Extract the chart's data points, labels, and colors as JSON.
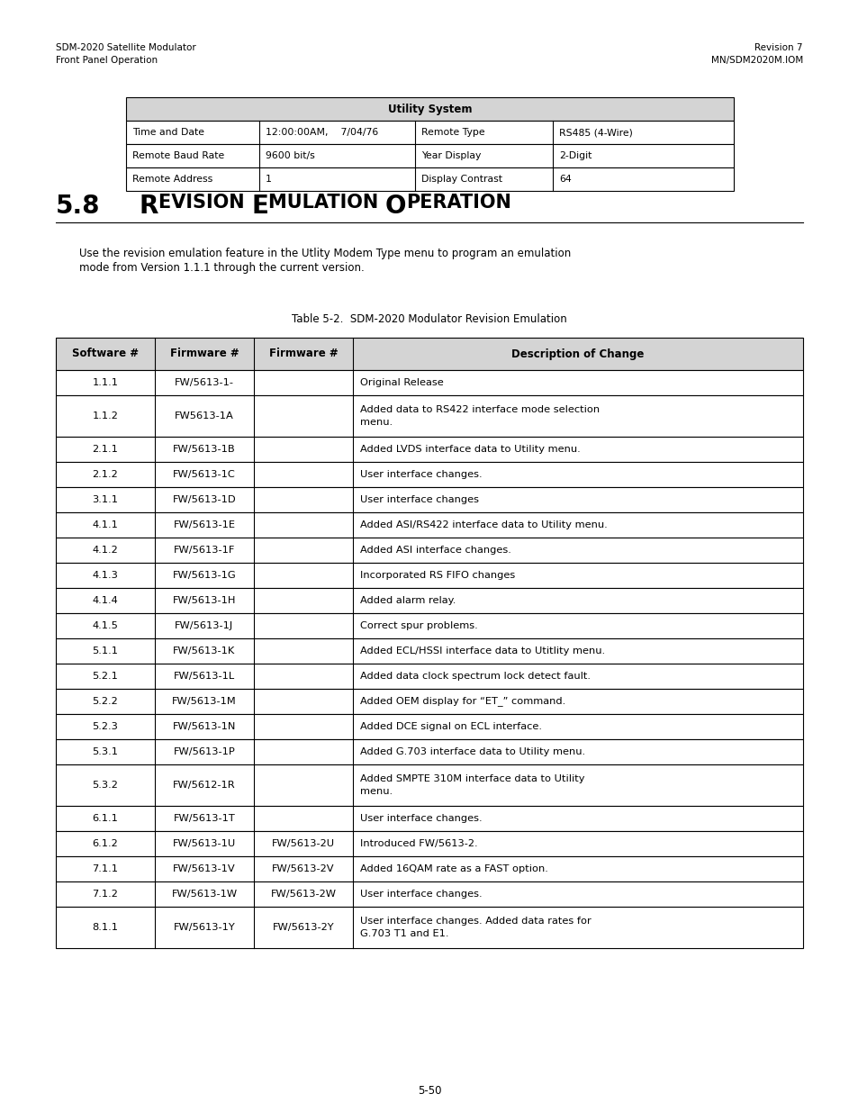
{
  "page_bg": "#ffffff",
  "header_left_line1": "SDM-2020 Satellite Modulator",
  "header_left_line2": "Front Panel Operation",
  "header_right_line1": "Revision 7",
  "header_right_line2": "MN/SDM2020M.IOM",
  "utility_table_title": "Utility System",
  "utility_table": [
    [
      "Time and Date",
      "12:00:00AM,    7/04/76",
      "Remote Type",
      "RS485 (4-Wire)"
    ],
    [
      "Remote Baud Rate",
      "9600 bit/s",
      "Year Display",
      "2-Digit"
    ],
    [
      "Remote Address",
      "1",
      "Display Contrast",
      "64"
    ]
  ],
  "section_number": "5.8",
  "section_title_normal": "R",
  "section_title_small": "EVISION ",
  "section_title_normal2": "E",
  "section_title_small2": "MULATION ",
  "section_title_normal3": "O",
  "section_title_small3": "PERATION",
  "body_text_line1": "Use the revision emulation feature in the Utlity Modem Type menu to program an emulation",
  "body_text_line2": "mode from Version 1.1.1 through the current version.",
  "table_caption": "Table 5-2.  SDM-2020 Modulator Revision Emulation",
  "main_table_headers": [
    "Software #",
    "Firmware #",
    "Firmware #",
    "Description of Change"
  ],
  "main_table_rows": [
    [
      "1.1.1",
      "FW/5613-1-",
      "",
      "Original Release"
    ],
    [
      "1.1.2",
      "FW5613-1A",
      "",
      "Added data to RS422 interface mode selection\nmenu."
    ],
    [
      "2.1.1",
      "FW/5613-1B",
      "",
      "Added LVDS interface data to Utility menu."
    ],
    [
      "2.1.2",
      "FW/5613-1C",
      "",
      "User interface changes."
    ],
    [
      "3.1.1",
      "FW/5613-1D",
      "",
      "User interface changes"
    ],
    [
      "4.1.1",
      "FW/5613-1E",
      "",
      "Added ASI/RS422 interface data to Utility menu."
    ],
    [
      "4.1.2",
      "FW/5613-1F",
      "",
      "Added ASI interface changes."
    ],
    [
      "4.1.3",
      "FW/5613-1G",
      "",
      "Incorporated RS FIFO changes"
    ],
    [
      "4.1.4",
      "FW/5613-1H",
      "",
      "Added alarm relay."
    ],
    [
      "4.1.5",
      "FW/5613-1J",
      "",
      "Correct spur problems."
    ],
    [
      "5.1.1",
      "FW/5613-1K",
      "",
      "Added ECL/HSSI interface data to Utitlity menu."
    ],
    [
      "5.2.1",
      "FW/5613-1L",
      "",
      "Added data clock spectrum lock detect fault."
    ],
    [
      "5.2.2",
      "FW/5613-1M",
      "",
      "Added OEM display for “ET_” command."
    ],
    [
      "5.2.3",
      "FW/5613-1N",
      "",
      "Added DCE signal on ECL interface."
    ],
    [
      "5.3.1",
      "FW/5613-1P",
      "",
      "Added G.703 interface data to Utility menu."
    ],
    [
      "5.3.2",
      "FW/5612-1R",
      "",
      "Added SMPTE 310M interface data to Utility\nmenu."
    ],
    [
      "6.1.1",
      "FW/5613-1T",
      "",
      "User interface changes."
    ],
    [
      "6.1.2",
      "FW/5613-1U",
      "FW/5613-2U",
      "Introduced FW/5613-2."
    ],
    [
      "7.1.1",
      "FW/5613-1V",
      "FW/5613-2V",
      "Added 16QAM rate as a FAST option."
    ],
    [
      "7.1.2",
      "FW/5613-1W",
      "FW/5613-2W",
      "User interface changes."
    ],
    [
      "8.1.1",
      "FW/5613-1Y",
      "FW/5613-2Y",
      "User interface changes. Added data rates for\nG.703 T1 and E1."
    ]
  ],
  "footer_text": "5-50",
  "table_header_bg": "#d4d4d4",
  "utility_header_bg": "#d4d4d4"
}
